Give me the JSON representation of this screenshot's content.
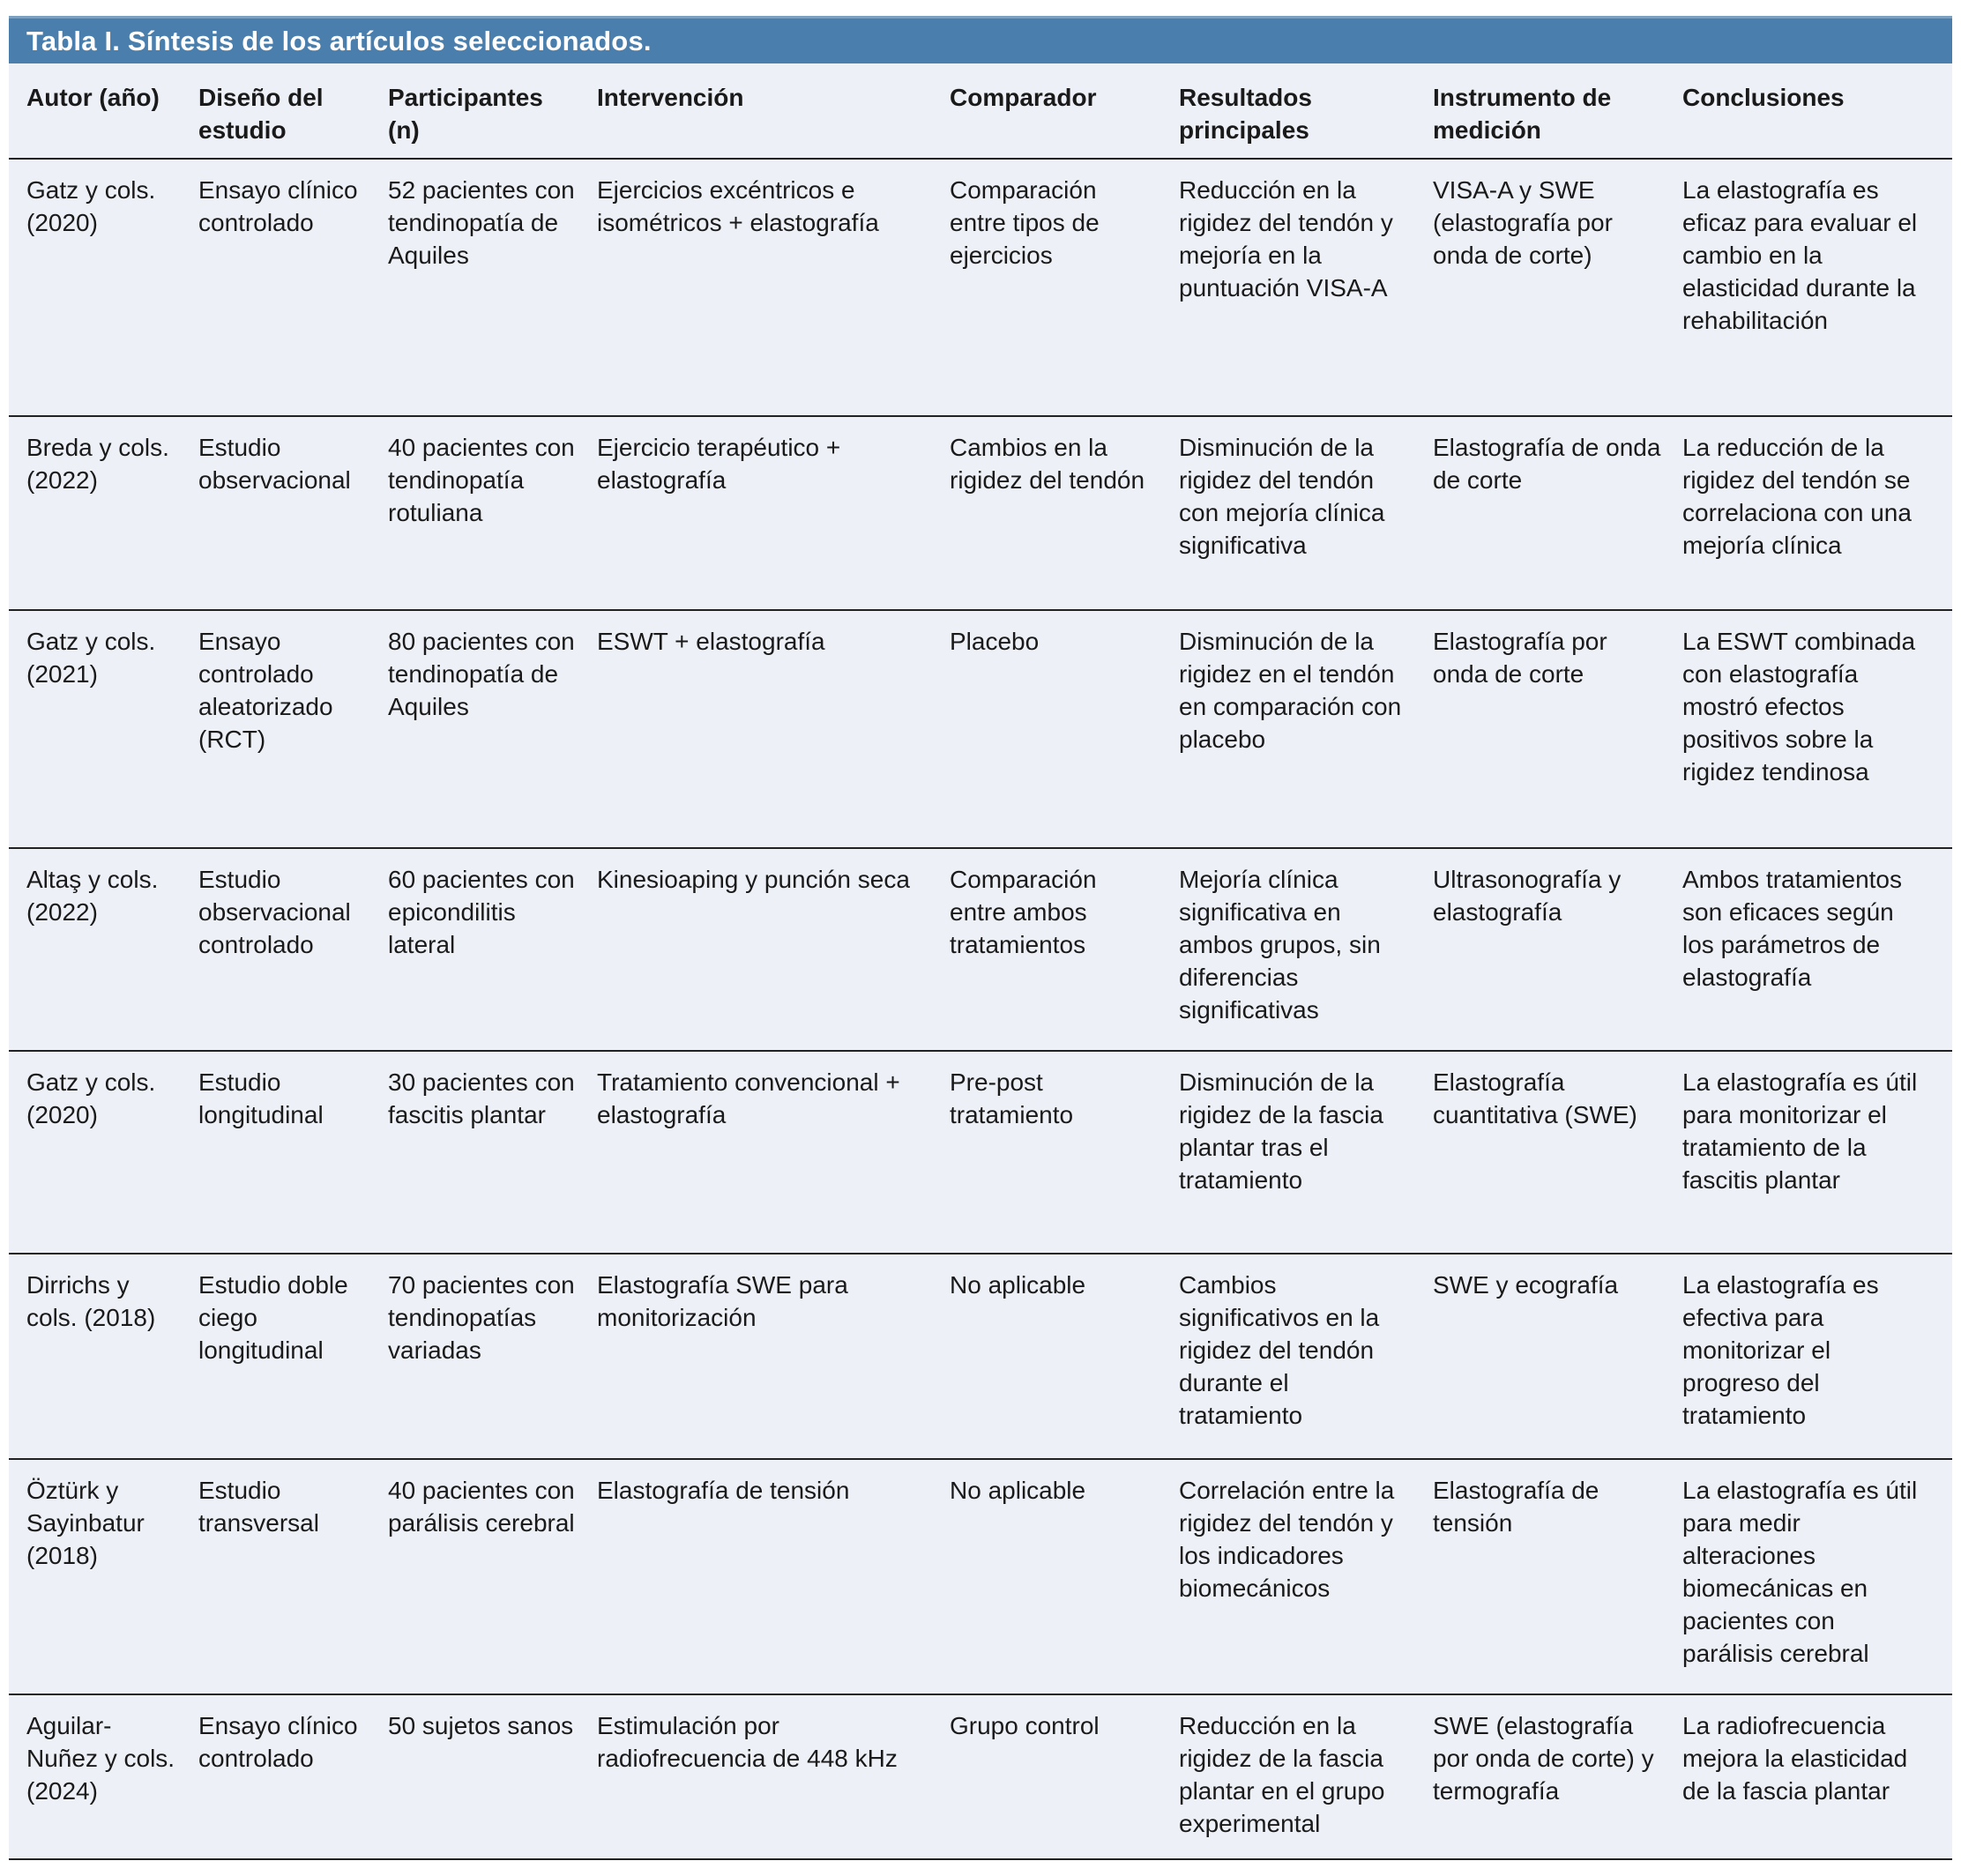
{
  "table": {
    "title": "Tabla I. Síntesis de los artículos seleccionados.",
    "columns": [
      "Autor (año)",
      "Diseño del estudio",
      "Participantes (n)",
      "Intervención",
      "Comparador",
      "Resultados principales",
      "Instrumento de medición",
      "Conclusiones"
    ],
    "rows": [
      [
        "Gatz y cols. (2020)",
        "Ensayo clínico controlado",
        "52 pacientes con tendinopatía de Aquiles",
        "Ejercicios excéntricos e isométricos + elastografía",
        "Comparación entre tipos de ejercicios",
        "Reducción en la rigidez del tendón y mejoría en la puntuación VISA-A",
        "VISA-A y SWE (elastografía por onda de corte)",
        "La elastografía es eficaz para evaluar el cambio en la elasticidad durante la rehabilitación"
      ],
      [
        "Breda y cols. (2022)",
        "Estudio observacional",
        "40 pacientes con tendinopatía rotuliana",
        "Ejercicio terapéutico + elastografía",
        "Cambios en la rigidez del tendón",
        "Disminución de la rigidez del tendón con mejoría clínica significativa",
        "Elastografía de onda de corte",
        "La reducción de la rigidez del tendón se correlaciona con una mejoría clínica"
      ],
      [
        "Gatz y cols. (2021)",
        "Ensayo controlado aleatorizado (RCT)",
        "80 pacientes con tendinopatía de Aquiles",
        "ESWT + elastografía",
        "Placebo",
        "Disminución de la rigidez en el tendón en comparación con placebo",
        "Elastografía por onda de corte",
        "La ESWT combinada con elastografía mostró efectos positivos sobre la rigidez tendinosa"
      ],
      [
        "Altaş y cols. (2022)",
        "Estudio observacional controlado",
        "60 pacientes con epicondilitis lateral",
        "Kinesioaping y punción seca",
        "Comparación entre ambos tratamientos",
        "Mejoría clínica significativa en ambos grupos, sin diferencias significativas",
        "Ultrasonografía y elastografía",
        "Ambos tratamientos son eficaces según los parámetros de elastografía"
      ],
      [
        "Gatz y cols. (2020)",
        "Estudio longitudinal",
        "30 pacientes con fascitis plantar",
        "Tratamiento convencional + elastografía",
        "Pre-post tratamiento",
        "Disminución de la rigidez de la fascia plantar tras el tratamiento",
        "Elastografía cuantitativa (SWE)",
        "La elastografía es útil para monitorizar el tratamiento de la fascitis plantar"
      ],
      [
        "Dirrichs y cols. (2018)",
        "Estudio doble ciego longitudinal",
        "70 pacientes con tendinopatías variadas",
        "Elastografía SWE para monitorización",
        "No aplicable",
        "Cambios significativos en la rigidez del tendón durante el tratamiento",
        "SWE y ecografía",
        "La elastografía es efectiva para monitorizar el progreso del tratamiento"
      ],
      [
        "Öztürk y Sayinbatur (2018)",
        "Estudio transversal",
        "40 pacientes con parálisis cerebral",
        "Elastografía de tensión",
        "No aplicable",
        "Correlación entre la rigidez del tendón y los indicadores biomecánicos",
        "Elastografía de tensión",
        "La elastografía es útil para medir alteraciones biomecánicas en pacientes con parálisis cerebral"
      ],
      [
        "Aguilar-Nuñez y cols. (2024)",
        "Ensayo clínico controlado",
        "50 sujetos sanos",
        "Estimulación por radiofrecuencia de 448 kHz",
        "Grupo control",
        "Reducción en la rigidez de la fascia plantar en el grupo experimental",
        "SWE (elastografía por onda de corte) y termografía",
        "La radiofrecuencia mejora la elasticidad de la fascia plantar"
      ]
    ]
  },
  "colors": {
    "header_bg": "#4a7ead",
    "header_edge": "#7ca0c2",
    "body_bg": "#edf0f6",
    "rule": "#222222",
    "title_text": "#ffffff",
    "body_text": "#1a1a1a"
  }
}
